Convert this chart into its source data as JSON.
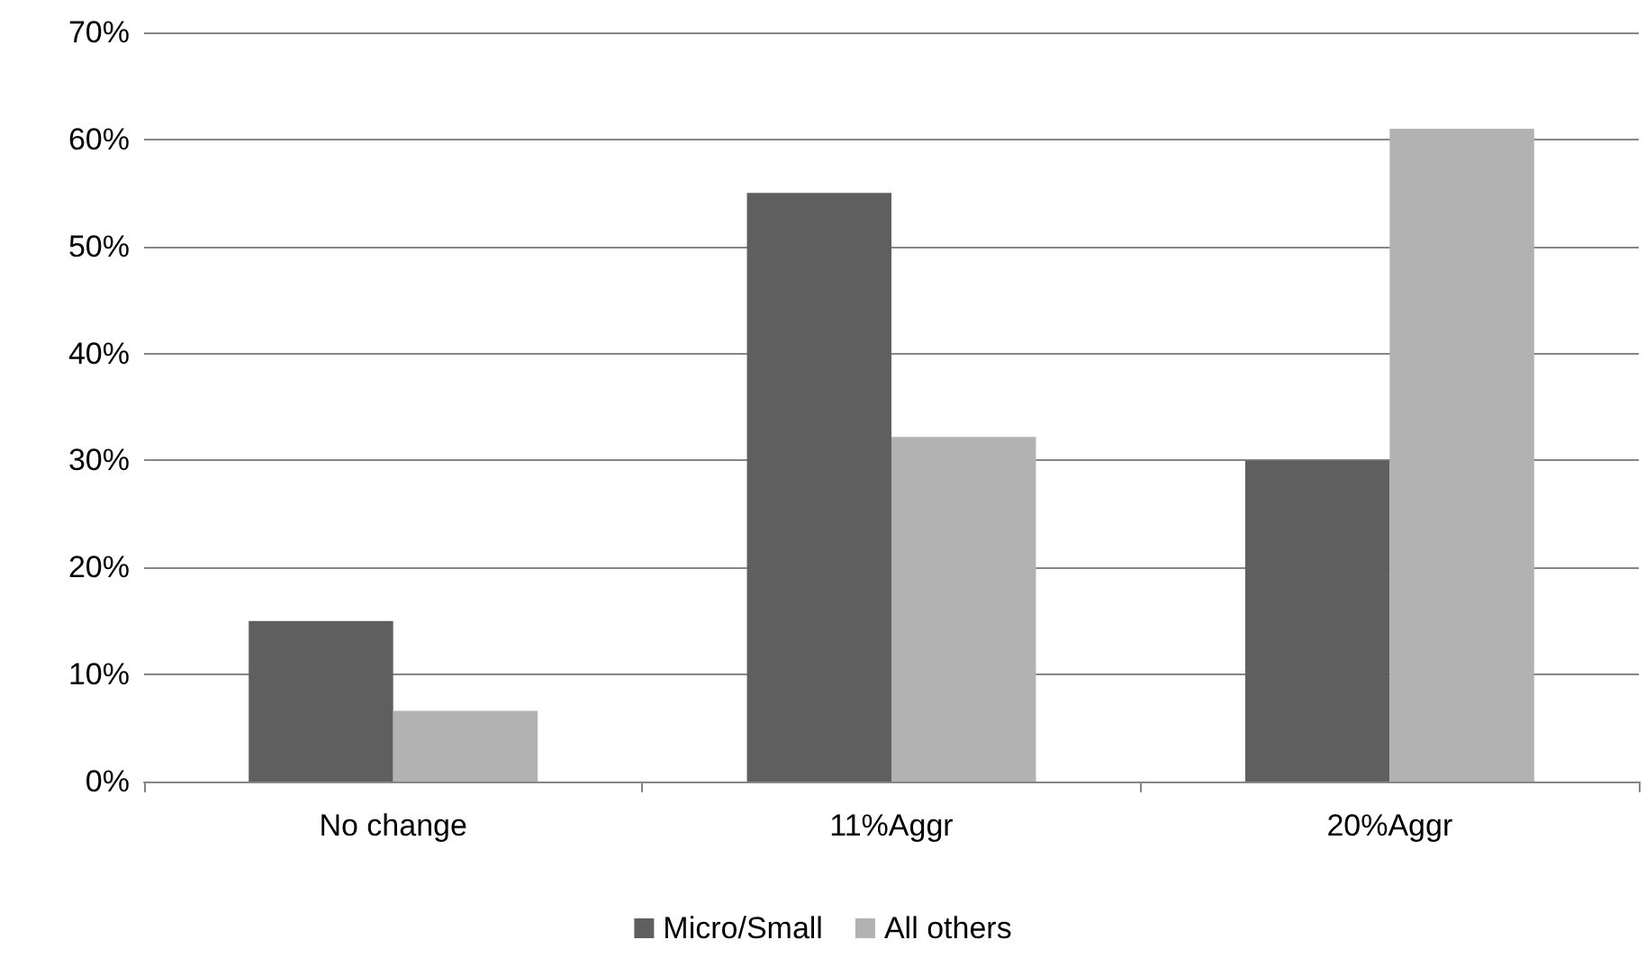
{
  "chart_data": {
    "type": "bar",
    "categories": [
      "No change",
      "11%Aggr",
      "20%Aggr"
    ],
    "series": [
      {
        "name": "Micro/Small",
        "color": "#5f5f5f",
        "values": [
          15,
          55,
          30
        ]
      },
      {
        "name": "All others",
        "color": "#b2b2b2",
        "values": [
          6.6,
          32.2,
          61
        ]
      }
    ],
    "ylim": [
      0,
      70
    ],
    "yticks": [
      {
        "value": 0,
        "label": "0%"
      },
      {
        "value": 10,
        "label": "10%"
      },
      {
        "value": 20,
        "label": "20%"
      },
      {
        "value": 30,
        "label": "30%"
      },
      {
        "value": 40,
        "label": "40%"
      },
      {
        "value": 50,
        "label": "50%"
      },
      {
        "value": 60,
        "label": "60%"
      },
      {
        "value": 70,
        "label": "70%"
      }
    ],
    "grid": "y",
    "legend": "bottom"
  }
}
